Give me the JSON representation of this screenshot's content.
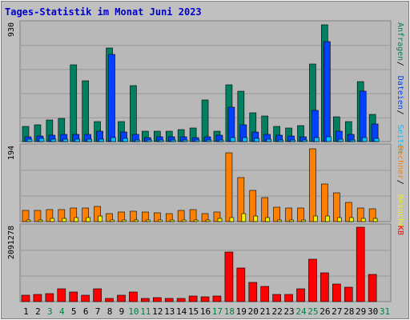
{
  "title": "Tages-Statistik im Monat Juni 2023",
  "colors": {
    "background": "#c0c0c0",
    "panel": "#b8b8b8",
    "grid": "#999999",
    "title": "#0000cc",
    "anfragen": "#008060",
    "dateien": "#0040ff",
    "seiten": "#00c0ff",
    "besuche": "#f0f000",
    "rechner": "#ff8000",
    "kb": "#ff0000",
    "weekday": "#000000",
    "weekend": "#008040"
  },
  "chart_data": [
    {
      "type": "bar",
      "panel": "top",
      "ymax_label": "930",
      "ylim": [
        0,
        930
      ],
      "grid": true,
      "legend": [
        {
          "name": "Anfragen",
          "color": "#008060"
        },
        {
          "name": "Dateien",
          "color": "#0040ff"
        },
        {
          "name": "Seiten",
          "color": "#00c0ff"
        }
      ],
      "categories": [
        "1",
        "2",
        "3",
        "4",
        "5",
        "6",
        "7",
        "8",
        "9",
        "10",
        "11",
        "12",
        "13",
        "14",
        "15",
        "16",
        "17",
        "18",
        "19",
        "20",
        "21",
        "22",
        "23",
        "24",
        "25",
        "26",
        "27",
        "28",
        "29",
        "30",
        "31"
      ],
      "series": [
        {
          "name": "Anfragen",
          "values": [
            120,
            135,
            170,
            185,
            610,
            480,
            160,
            740,
            160,
            440,
            80,
            80,
            80,
            95,
            110,
            330,
            80,
            450,
            400,
            230,
            200,
            120,
            105,
            125,
            615,
            925,
            195,
            155,
            475,
            215,
            0
          ]
        },
        {
          "name": "Dateien",
          "values": [
            40,
            45,
            50,
            55,
            55,
            55,
            80,
            690,
            75,
            60,
            30,
            35,
            35,
            35,
            30,
            35,
            50,
            270,
            130,
            75,
            55,
            50,
            45,
            40,
            245,
            790,
            80,
            55,
            400,
            140,
            0
          ]
        },
        {
          "name": "Seiten",
          "values": [
            20,
            25,
            20,
            20,
            20,
            20,
            20,
            30,
            25,
            15,
            10,
            10,
            10,
            10,
            10,
            10,
            15,
            30,
            30,
            25,
            20,
            15,
            15,
            15,
            30,
            35,
            20,
            15,
            30,
            25,
            0
          ]
        }
      ]
    },
    {
      "type": "bar",
      "panel": "middle",
      "ymax_label": "194",
      "ylim": [
        0,
        194
      ],
      "grid": true,
      "legend": [
        {
          "name": "Rechner",
          "color": "#ff8000"
        },
        {
          "name": "Besuche",
          "color": "#f0f000"
        }
      ],
      "categories": [
        "1",
        "2",
        "3",
        "4",
        "5",
        "6",
        "7",
        "8",
        "9",
        "10",
        "11",
        "12",
        "13",
        "14",
        "15",
        "16",
        "17",
        "18",
        "19",
        "20",
        "21",
        "22",
        "23",
        "24",
        "25",
        "26",
        "27",
        "28",
        "29",
        "30",
        "31"
      ],
      "series": [
        {
          "name": "Rechner",
          "values": [
            30,
            30,
            32,
            32,
            35,
            35,
            40,
            20,
            25,
            28,
            25,
            22,
            20,
            30,
            32,
            20,
            25,
            180,
            115,
            82,
            62,
            37,
            35,
            35,
            190,
            98,
            75,
            50,
            35,
            33,
            0
          ]
        },
        {
          "name": "Besuche",
          "values": [
            5,
            5,
            8,
            8,
            10,
            10,
            15,
            5,
            5,
            5,
            5,
            5,
            5,
            5,
            5,
            5,
            8,
            10,
            20,
            15,
            10,
            5,
            5,
            5,
            15,
            15,
            10,
            10,
            8,
            8,
            0
          ]
        }
      ]
    },
    {
      "type": "bar",
      "panel": "bottom",
      "ymax_label": "2091278",
      "ylim": [
        0,
        2091278
      ],
      "grid": true,
      "legend": [
        {
          "name": "KB",
          "color": "#ff0000"
        }
      ],
      "categories": [
        "1",
        "2",
        "3",
        "4",
        "5",
        "6",
        "7",
        "8",
        "9",
        "10",
        "11",
        "12",
        "13",
        "14",
        "15",
        "16",
        "17",
        "18",
        "19",
        "20",
        "21",
        "22",
        "23",
        "24",
        "25",
        "26",
        "27",
        "28",
        "29",
        "30",
        "31"
      ],
      "series": [
        {
          "name": "KB",
          "values": [
            190000,
            210000,
            230000,
            350000,
            280000,
            190000,
            350000,
            100000,
            190000,
            270000,
            100000,
            110000,
            80000,
            90000,
            160000,
            140000,
            160000,
            1400000,
            950000,
            540000,
            430000,
            210000,
            200000,
            350000,
            1200000,
            800000,
            500000,
            400000,
            2091278,
            760000,
            0
          ]
        }
      ]
    }
  ],
  "x_labels": [
    {
      "label": "1",
      "weekend": false
    },
    {
      "label": "2",
      "weekend": false
    },
    {
      "label": "3",
      "weekend": true
    },
    {
      "label": "4",
      "weekend": true
    },
    {
      "label": "5",
      "weekend": false
    },
    {
      "label": "6",
      "weekend": false
    },
    {
      "label": "7",
      "weekend": false
    },
    {
      "label": "8",
      "weekend": false
    },
    {
      "label": "9",
      "weekend": false
    },
    {
      "label": "10",
      "weekend": true
    },
    {
      "label": "11",
      "weekend": true
    },
    {
      "label": "12",
      "weekend": false
    },
    {
      "label": "13",
      "weekend": false
    },
    {
      "label": "14",
      "weekend": false
    },
    {
      "label": "15",
      "weekend": false
    },
    {
      "label": "16",
      "weekend": false
    },
    {
      "label": "17",
      "weekend": true
    },
    {
      "label": "18",
      "weekend": true
    },
    {
      "label": "19",
      "weekend": false
    },
    {
      "label": "20",
      "weekend": false
    },
    {
      "label": "21",
      "weekend": false
    },
    {
      "label": "22",
      "weekend": false
    },
    {
      "label": "23",
      "weekend": false
    },
    {
      "label": "24",
      "weekend": true
    },
    {
      "label": "25",
      "weekend": true
    },
    {
      "label": "26",
      "weekend": false
    },
    {
      "label": "27",
      "weekend": false
    },
    {
      "label": "28",
      "weekend": false
    },
    {
      "label": "29",
      "weekend": false
    },
    {
      "label": "30",
      "weekend": false
    },
    {
      "label": "31",
      "weekend": true
    }
  ]
}
